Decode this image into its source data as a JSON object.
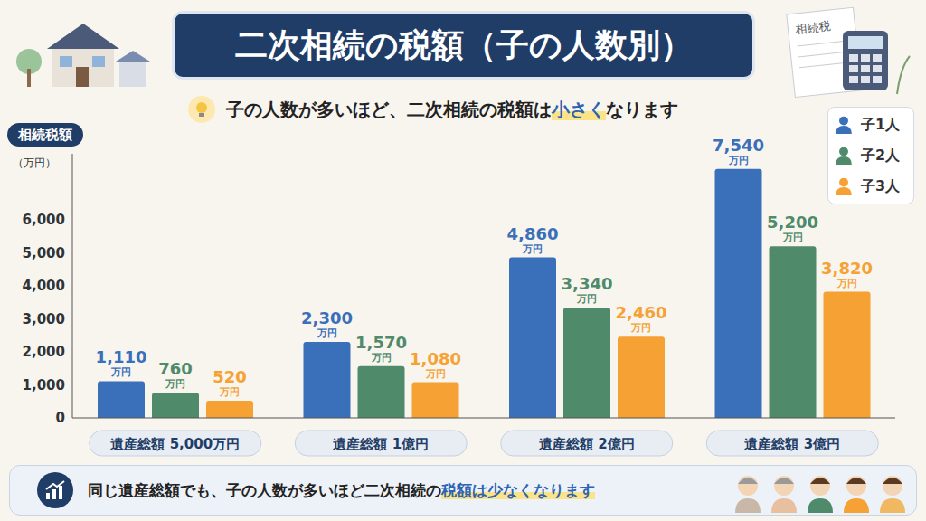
{
  "title": "二次相続の税額（子の人数別）",
  "subtitle": {
    "text": "子の人数が多いほど、二次相続の税額は小さくなります",
    "highlight": "小さく"
  },
  "footer": {
    "text": "同じ遺産総額でも、子の人数が多いほど二次相続の税額は少なくなります",
    "highlight": "税額は少なくなります"
  },
  "illustration_text": "相続税",
  "chart_data": {
    "type": "bar",
    "y_label": "相続税額",
    "y_unit": "（万円）",
    "label_unit": "万円",
    "categories": [
      "遺産総額 5,000万円",
      "遺産総額 1億円",
      "遺産総額 2億円",
      "遺産総額 3億円"
    ],
    "series": [
      {
        "name": "子1人",
        "color": "#3a6fba",
        "values": [
          1110,
          2300,
          4860,
          7540
        ],
        "value_labels": [
          "1,110",
          "2,300",
          "4,860",
          "7,540"
        ]
      },
      {
        "name": "子2人",
        "color": "#4f8a6b",
        "values": [
          760,
          1570,
          3340,
          5200
        ],
        "value_labels": [
          "760",
          "1,570",
          "3,340",
          "5,200"
        ]
      },
      {
        "name": "子3人",
        "color": "#f5a133",
        "values": [
          520,
          1080,
          2460,
          3820
        ],
        "value_labels": [
          "520",
          "1,080",
          "2,460",
          "3,820"
        ]
      }
    ],
    "ylim": [
      0,
      8000
    ],
    "yticks": [
      0,
      {
        "value": 1000,
        "label": "1,000"
      },
      {
        "value": 2000,
        "label": "2,000"
      },
      {
        "value": 3000,
        "label": "3,000"
      },
      {
        "value": 4000,
        "label": "4,000"
      },
      {
        "value": 5000,
        "label": "5,000"
      },
      {
        "value": 6000,
        "label": "6,000"
      }
    ],
    "grid": false,
    "legend": "upper right",
    "data_labels": true
  }
}
